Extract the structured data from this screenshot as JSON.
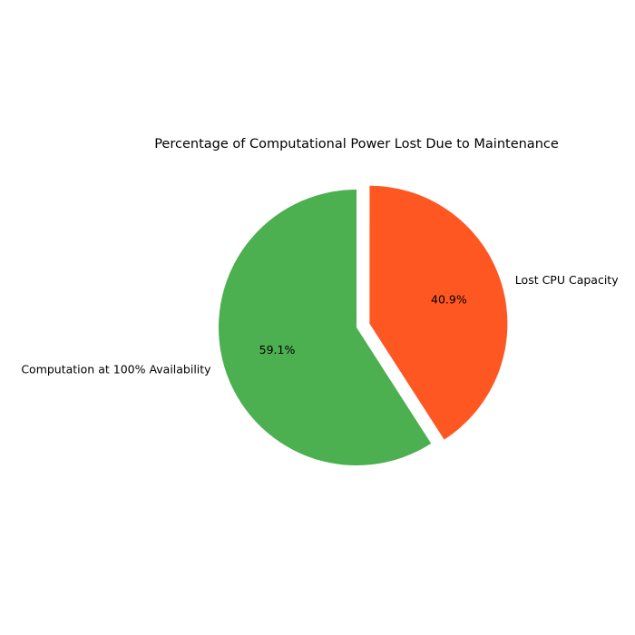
{
  "chart_data": {
    "type": "pie",
    "title": "Percentage of Computational Power Lost Due to Maintenance",
    "slices": [
      {
        "label": "Computation at 100% Availability",
        "value": 59.1,
        "percent_label": "59.1%",
        "color": "#4caf50",
        "exploded": false
      },
      {
        "label": "Lost CPU Capacity",
        "value": 40.9,
        "percent_label": "40.9%",
        "color": "#ff5722",
        "exploded": true
      }
    ],
    "start_angle_deg": 90,
    "direction": "counterclockwise",
    "legend": "none"
  }
}
